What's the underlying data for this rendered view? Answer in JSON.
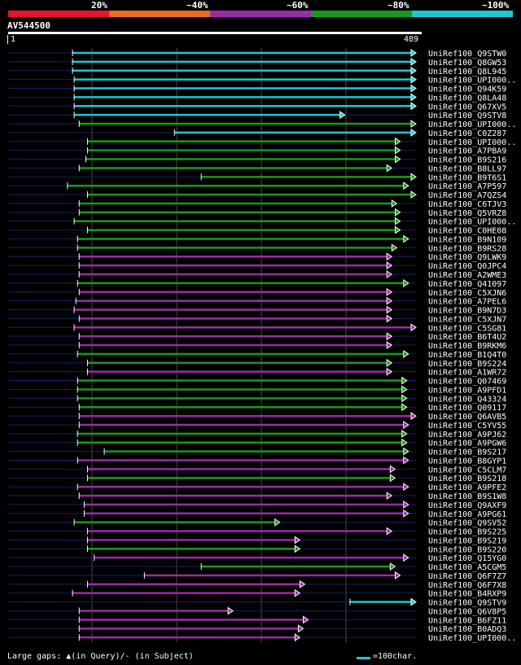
{
  "legend": {
    "segments": [
      {
        "label": "20%",
        "color": "#e8152a"
      },
      {
        "label": "~40%",
        "color": "#e86d1a"
      },
      {
        "label": "~60%",
        "color": "#9a2ba8"
      },
      {
        "label": "~80%",
        "color": "#179a1c"
      },
      {
        "label": "~100%",
        "color": "#1fc7d0"
      }
    ]
  },
  "query": {
    "name": "AV544500",
    "start_label": "1",
    "end_label": "489",
    "length": 489
  },
  "footer": {
    "gaps_text": "Large gaps: ▲(in Query)/- (in Subject)",
    "scale_text": "=100char."
  },
  "colors": {
    "cyan": "#1fc7d0",
    "green": "#179a1c",
    "purple": "#9a2ba8",
    "line": "#1a2060",
    "grid": "#4a4a4a"
  },
  "hits": [
    {
      "name": "UniRef100_Q9STW0",
      "start": 78,
      "end": 489,
      "color": "cyan"
    },
    {
      "name": "UniRef100_Q8GW53",
      "start": 78,
      "end": 489,
      "color": "cyan"
    },
    {
      "name": "UniRef100_Q8L945",
      "start": 78,
      "end": 489,
      "color": "cyan"
    },
    {
      "name": "UniRef100_UPI000..",
      "start": 80,
      "end": 489,
      "color": "cyan"
    },
    {
      "name": "UniRef100_Q94K59",
      "start": 80,
      "end": 489,
      "color": "cyan"
    },
    {
      "name": "UniRef100_Q8LA48",
      "start": 80,
      "end": 489,
      "color": "cyan"
    },
    {
      "name": "UniRef100_Q67XV5",
      "start": 80,
      "end": 489,
      "color": "cyan"
    },
    {
      "name": "UniRef100_Q9STV8",
      "start": 80,
      "end": 404,
      "color": "cyan"
    },
    {
      "name": "UniRef100_UPI000..",
      "start": 86,
      "end": 489,
      "color": "green"
    },
    {
      "name": "UniRef100_C0Z287",
      "start": 200,
      "end": 489,
      "color": "cyan"
    },
    {
      "name": "UniRef100_UPI000..",
      "start": 96,
      "end": 470,
      "color": "green"
    },
    {
      "name": "UniRef100_A7PBA9",
      "start": 96,
      "end": 470,
      "color": "green"
    },
    {
      "name": "UniRef100_B9S216",
      "start": 94,
      "end": 470,
      "color": "green"
    },
    {
      "name": "UniRef100_B8LL97",
      "start": 86,
      "end": 460,
      "color": "green"
    },
    {
      "name": "UniRef100_B9T6S1",
      "start": 232,
      "end": 489,
      "color": "green"
    },
    {
      "name": "UniRef100_A7P597",
      "start": 72,
      "end": 480,
      "color": "green"
    },
    {
      "name": "UniRef100_A7QZS4",
      "start": 96,
      "end": 489,
      "color": "green"
    },
    {
      "name": "UniRef100_C6TJV3",
      "start": 86,
      "end": 466,
      "color": "green"
    },
    {
      "name": "UniRef100_Q5VRZ8",
      "start": 86,
      "end": 470,
      "color": "green"
    },
    {
      "name": "UniRef100_UPI000..",
      "start": 80,
      "end": 470,
      "color": "green"
    },
    {
      "name": "UniRef100_C0HE08",
      "start": 96,
      "end": 470,
      "color": "green"
    },
    {
      "name": "UniRef100_B9N109",
      "start": 84,
      "end": 480,
      "color": "green"
    },
    {
      "name": "UniRef100_B9RS28",
      "start": 84,
      "end": 466,
      "color": "green"
    },
    {
      "name": "UniRef100_Q9LWK9",
      "start": 86,
      "end": 460,
      "color": "purple"
    },
    {
      "name": "UniRef100_Q0JPC4",
      "start": 86,
      "end": 460,
      "color": "purple"
    },
    {
      "name": "UniRef100_A2WME3",
      "start": 86,
      "end": 460,
      "color": "purple"
    },
    {
      "name": "UniRef100_Q41097",
      "start": 84,
      "end": 480,
      "color": "green"
    },
    {
      "name": "UniRef100_C5XJN6",
      "start": 86,
      "end": 460,
      "color": "purple"
    },
    {
      "name": "UniRef100_A7PEL6",
      "start": 82,
      "end": 460,
      "color": "purple"
    },
    {
      "name": "UniRef100_B9N7D3",
      "start": 80,
      "end": 460,
      "color": "purple"
    },
    {
      "name": "UniRef100_C5XJN7",
      "start": 86,
      "end": 460,
      "color": "purple"
    },
    {
      "name": "UniRef100_C5SG81",
      "start": 80,
      "end": 489,
      "color": "purple"
    },
    {
      "name": "UniRef100_B6T4U2",
      "start": 86,
      "end": 460,
      "color": "purple"
    },
    {
      "name": "UniRef100_B9RKM6",
      "start": 86,
      "end": 460,
      "color": "purple"
    },
    {
      "name": "UniRef100_B1Q4T0",
      "start": 84,
      "end": 480,
      "color": "green"
    },
    {
      "name": "UniRef100_B9S224",
      "start": 96,
      "end": 460,
      "color": "green"
    },
    {
      "name": "UniRef100_A1WR72",
      "start": 96,
      "end": 460,
      "color": "purple"
    },
    {
      "name": "UniRef100_Q07469",
      "start": 84,
      "end": 478,
      "color": "green"
    },
    {
      "name": "UniRef100_A9PFD1",
      "start": 84,
      "end": 478,
      "color": "green"
    },
    {
      "name": "UniRef100_Q43324",
      "start": 84,
      "end": 478,
      "color": "green"
    },
    {
      "name": "UniRef100_Q09117",
      "start": 86,
      "end": 478,
      "color": "green"
    },
    {
      "name": "UniRef100_Q6AVB5",
      "start": 86,
      "end": 489,
      "color": "purple"
    },
    {
      "name": "UniRef100_C5YV55",
      "start": 86,
      "end": 480,
      "color": "purple"
    },
    {
      "name": "UniRef100_A9PJ62",
      "start": 84,
      "end": 478,
      "color": "green"
    },
    {
      "name": "UniRef100_A9PGW6",
      "start": 84,
      "end": 478,
      "color": "green"
    },
    {
      "name": "UniRef100_B9S217",
      "start": 116,
      "end": 480,
      "color": "green"
    },
    {
      "name": "UniRef100_B8GYP1",
      "start": 84,
      "end": 480,
      "color": "purple"
    },
    {
      "name": "UniRef100_C5CLM7",
      "start": 96,
      "end": 464,
      "color": "purple"
    },
    {
      "name": "UniRef100_B9S218",
      "start": 96,
      "end": 464,
      "color": "green"
    },
    {
      "name": "UniRef100_A9PFE2",
      "start": 84,
      "end": 480,
      "color": "purple"
    },
    {
      "name": "UniRef100_B9S1W8",
      "start": 86,
      "end": 460,
      "color": "purple"
    },
    {
      "name": "UniRef100_Q9AXF9",
      "start": 92,
      "end": 480,
      "color": "purple"
    },
    {
      "name": "UniRef100_A9PG61",
      "start": 92,
      "end": 480,
      "color": "purple"
    },
    {
      "name": "UniRef100_Q9SV52",
      "start": 80,
      "end": 326,
      "color": "green"
    },
    {
      "name": "UniRef100_B9S225",
      "start": 96,
      "end": 460,
      "color": "purple"
    },
    {
      "name": "UniRef100_B9S219",
      "start": 96,
      "end": 350,
      "color": "purple"
    },
    {
      "name": "UniRef100_B9S220",
      "start": 96,
      "end": 350,
      "color": "green"
    },
    {
      "name": "UniRef100_Q15YG0",
      "start": 104,
      "end": 480,
      "color": "purple"
    },
    {
      "name": "UniRef100_A5CGM5",
      "start": 232,
      "end": 464,
      "color": "green"
    },
    {
      "name": "UniRef100_Q6F7Z7",
      "start": 164,
      "end": 470,
      "color": "purple"
    },
    {
      "name": "UniRef100_Q6F7X8",
      "start": 96,
      "end": 356,
      "color": "purple"
    },
    {
      "name": "UniRef100_B4RXP9",
      "start": 78,
      "end": 350,
      "color": "purple"
    },
    {
      "name": "UniRef100_Q9STV9",
      "start": 410,
      "end": 489,
      "color": "cyan"
    },
    {
      "name": "UniRef100_Q6V8P5",
      "start": 86,
      "end": 270,
      "color": "purple"
    },
    {
      "name": "UniRef100_B6FZ11",
      "start": 86,
      "end": 360,
      "color": "purple"
    },
    {
      "name": "UniRef100_B0ADQ3",
      "start": 86,
      "end": 354,
      "color": "purple"
    },
    {
      "name": "UniRef100_UPI000..",
      "start": 86,
      "end": 350,
      "color": "purple"
    }
  ]
}
